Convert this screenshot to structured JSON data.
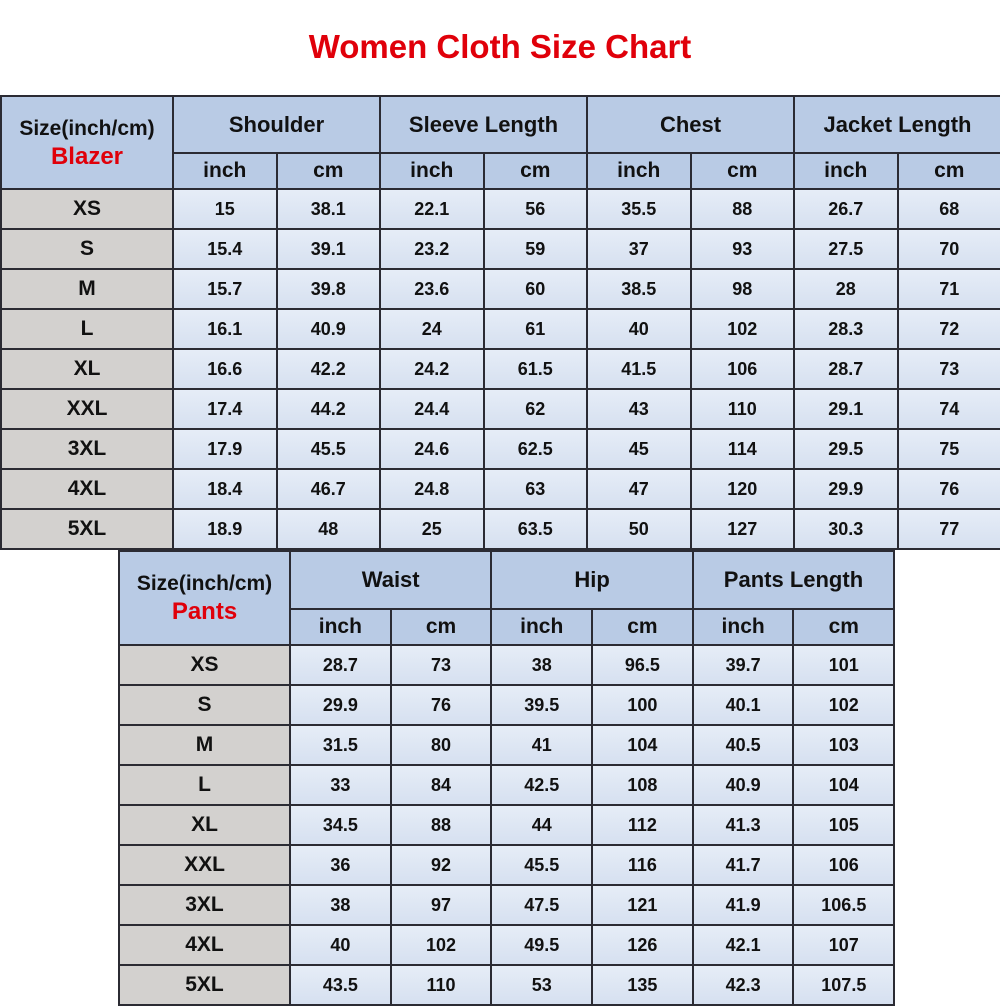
{
  "title": "Women Cloth Size Chart",
  "colors": {
    "title": "#e0000a",
    "header": "#b9cbe5",
    "size_column": "#d3d1cf",
    "cell": "#dde6f3"
  },
  "blazer": {
    "corner_label": "Size(inch/cm)",
    "category": "Blazer",
    "groups": [
      "Shoulder",
      "Sleeve Length",
      "Chest",
      "Jacket Length"
    ],
    "units": [
      "inch",
      "cm",
      "inch",
      "cm",
      "inch",
      "cm",
      "inch",
      "cm"
    ],
    "rows": [
      {
        "size": "XS",
        "values": [
          "15",
          "38.1",
          "22.1",
          "56",
          "35.5",
          "88",
          "26.7",
          "68"
        ]
      },
      {
        "size": "S",
        "values": [
          "15.4",
          "39.1",
          "23.2",
          "59",
          "37",
          "93",
          "27.5",
          "70"
        ]
      },
      {
        "size": "M",
        "values": [
          "15.7",
          "39.8",
          "23.6",
          "60",
          "38.5",
          "98",
          "28",
          "71"
        ]
      },
      {
        "size": "L",
        "values": [
          "16.1",
          "40.9",
          "24",
          "61",
          "40",
          "102",
          "28.3",
          "72"
        ]
      },
      {
        "size": "XL",
        "values": [
          "16.6",
          "42.2",
          "24.2",
          "61.5",
          "41.5",
          "106",
          "28.7",
          "73"
        ]
      },
      {
        "size": "XXL",
        "values": [
          "17.4",
          "44.2",
          "24.4",
          "62",
          "43",
          "110",
          "29.1",
          "74"
        ]
      },
      {
        "size": "3XL",
        "values": [
          "17.9",
          "45.5",
          "24.6",
          "62.5",
          "45",
          "114",
          "29.5",
          "75"
        ]
      },
      {
        "size": "4XL",
        "values": [
          "18.4",
          "46.7",
          "24.8",
          "63",
          "47",
          "120",
          "29.9",
          "76"
        ]
      },
      {
        "size": "5XL",
        "values": [
          "18.9",
          "48",
          "25",
          "63.5",
          "50",
          "127",
          "30.3",
          "77"
        ]
      }
    ]
  },
  "pants": {
    "corner_label": "Size(inch/cm)",
    "category": "Pants",
    "groups": [
      "Waist",
      "Hip",
      "Pants Length"
    ],
    "units": [
      "inch",
      "cm",
      "inch",
      "cm",
      "inch",
      "cm"
    ],
    "rows": [
      {
        "size": "XS",
        "values": [
          "28.7",
          "73",
          "38",
          "96.5",
          "39.7",
          "101"
        ]
      },
      {
        "size": "S",
        "values": [
          "29.9",
          "76",
          "39.5",
          "100",
          "40.1",
          "102"
        ]
      },
      {
        "size": "M",
        "values": [
          "31.5",
          "80",
          "41",
          "104",
          "40.5",
          "103"
        ]
      },
      {
        "size": "L",
        "values": [
          "33",
          "84",
          "42.5",
          "108",
          "40.9",
          "104"
        ]
      },
      {
        "size": "XL",
        "values": [
          "34.5",
          "88",
          "44",
          "112",
          "41.3",
          "105"
        ]
      },
      {
        "size": "XXL",
        "values": [
          "36",
          "92",
          "45.5",
          "116",
          "41.7",
          "106"
        ]
      },
      {
        "size": "3XL",
        "values": [
          "38",
          "97",
          "47.5",
          "121",
          "41.9",
          "106.5"
        ]
      },
      {
        "size": "4XL",
        "values": [
          "40",
          "102",
          "49.5",
          "126",
          "42.1",
          "107"
        ]
      },
      {
        "size": "5XL",
        "values": [
          "43.5",
          "110",
          "53",
          "135",
          "42.3",
          "107.5"
        ]
      }
    ]
  }
}
